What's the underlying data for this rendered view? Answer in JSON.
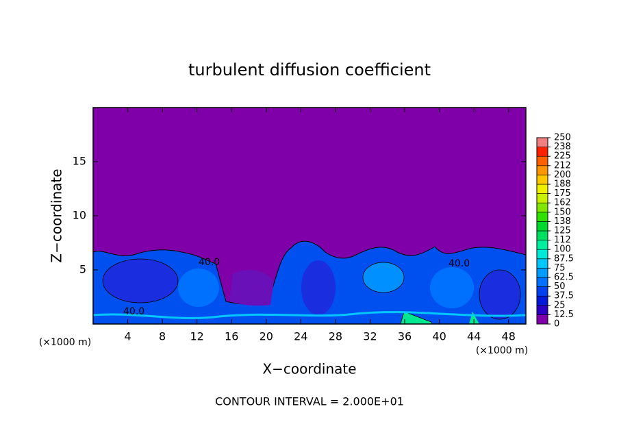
{
  "chart_data": {
    "type": "contour",
    "title": "turbulent diffusion coefficient",
    "xlabel": "X−coordinate",
    "ylabel": "Z−coordinate",
    "x_unit": "(×1000 m)",
    "y_unit": "(×1000 m)",
    "footer": "CONTOUR INTERVAL = 2.000E+01",
    "xlim": [
      0,
      50
    ],
    "xticks": [
      4,
      8,
      12,
      16,
      20,
      24,
      28,
      32,
      36,
      40,
      44,
      48
    ],
    "ylim": [
      0,
      20
    ],
    "yticks": [
      5,
      10,
      15
    ],
    "annotations": [
      "40.0",
      "40.0",
      "40.0"
    ],
    "colorbar_lim": [
      0,
      250
    ],
    "colorbar_ticks": [
      0,
      12.5,
      25,
      37.5,
      50,
      62.5,
      75,
      87.5,
      100,
      {
        "value": 112.5,
        "label": "112"
      },
      125,
      {
        "value": 137.5,
        "label": "138"
      },
      150,
      {
        "value": 162.5,
        "label": "162"
      },
      175,
      {
        "value": 187.5,
        "label": "188"
      },
      200,
      {
        "value": 212.5,
        "label": "212"
      },
      225,
      {
        "value": 237.5,
        "label": "238"
      },
      250
    ],
    "colors": [
      "#7f00a8",
      "#2c00c4",
      "#0018d8",
      "#0040f0",
      "#0070ff",
      "#009cff",
      "#00c8ff",
      "#00e8d8",
      "#00f0a0",
      "#00e060",
      "#00d830",
      "#30e000",
      "#80e800",
      "#c8f000",
      "#f0f000",
      "#ffc800",
      "#ff9600",
      "#ff6000",
      "#ff2000",
      "#f08080"
    ]
  }
}
